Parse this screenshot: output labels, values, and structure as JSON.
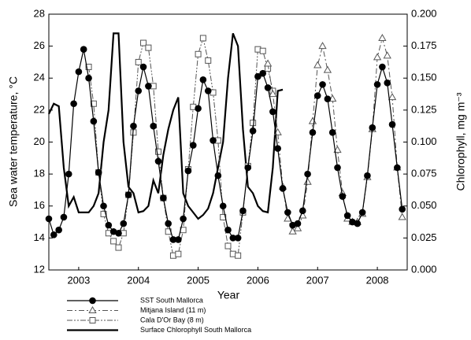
{
  "chart_data": {
    "type": "line",
    "x_label": "Year",
    "y_label": "Sea water temperature, °C",
    "y2_label": "Chlorophyll, mg m⁻³",
    "x": [
      2003,
      2003.083,
      2003.167,
      2003.25,
      2003.333,
      2003.417,
      2003.5,
      2003.583,
      2003.667,
      2003.75,
      2003.833,
      2003.917,
      2004,
      2004.083,
      2004.167,
      2004.25,
      2004.333,
      2004.417,
      2004.5,
      2004.583,
      2004.667,
      2004.75,
      2004.833,
      2004.917,
      2005,
      2005.083,
      2005.167,
      2005.25,
      2005.333,
      2005.417,
      2005.5,
      2005.583,
      2005.667,
      2005.75,
      2005.833,
      2005.917,
      2006,
      2006.083,
      2006.167,
      2006.25,
      2006.333,
      2006.417,
      2006.5,
      2006.583,
      2006.667,
      2006.75,
      2006.833,
      2006.917,
      2007,
      2007.083,
      2007.167,
      2007.25,
      2007.333,
      2007.417,
      2007.5,
      2007.583,
      2007.667,
      2007.75,
      2007.833,
      2007.917,
      2008,
      2008.083,
      2008.167,
      2008.25,
      2008.333,
      2008.417,
      2008.5,
      2008.583,
      2008.667,
      2008.75,
      2008.833,
      2008.917
    ],
    "xlim": [
      2003,
      2009
    ],
    "xticks": [
      {
        "value": 2003.5,
        "label": "2003"
      },
      {
        "value": 2004.5,
        "label": "2004"
      },
      {
        "value": 2005.5,
        "label": "2005"
      },
      {
        "value": 2006.5,
        "label": "2006"
      },
      {
        "value": 2007.5,
        "label": "2007"
      },
      {
        "value": 2008.5,
        "label": "2008"
      }
    ],
    "ylim": [
      12,
      28
    ],
    "yticks": [
      12,
      14,
      16,
      18,
      20,
      22,
      24,
      26,
      28
    ],
    "y2lim": [
      0,
      0.2
    ],
    "y2ticks": [
      {
        "value": 0,
        "label": "0.000"
      },
      {
        "value": 0.025,
        "label": "0.025"
      },
      {
        "value": 0.05,
        "label": "0.050"
      },
      {
        "value": 0.075,
        "label": "0.075"
      },
      {
        "value": 0.1,
        "label": "0.100"
      },
      {
        "value": 0.125,
        "label": "0.125"
      },
      {
        "value": 0.15,
        "label": "0.150"
      },
      {
        "value": 0.175,
        "label": "0.175"
      },
      {
        "value": 0.2,
        "label": "0.200"
      }
    ],
    "series": [
      {
        "name": "SST South Mallorca",
        "color": "#000000",
        "marker": "circle",
        "line_style": "solid",
        "values": [
          15.2,
          14.2,
          14.5,
          15.3,
          18.0,
          22.4,
          24.4,
          25.8,
          24.0,
          21.3,
          18.1,
          16.0,
          14.8,
          14.4,
          14.3,
          14.9,
          16.7,
          21.0,
          23.2,
          24.7,
          23.5,
          21.0,
          18.8,
          16.5,
          14.9,
          13.9,
          13.9,
          15.2,
          18.2,
          19.8,
          22.1,
          23.9,
          23.2,
          20.1,
          17.9,
          16.0,
          14.5,
          14.0,
          14.0,
          15.7,
          18.4,
          20.7,
          24.1,
          24.3,
          23.4,
          21.9,
          19.6,
          17.1,
          15.6,
          14.8,
          14.9,
          15.7,
          18.0,
          20.6,
          22.9,
          23.6,
          22.7,
          20.6,
          18.4,
          16.6,
          15.4,
          15.0,
          14.9,
          15.6,
          17.9,
          20.9,
          23.6,
          24.7,
          23.7,
          21.1,
          18.4,
          15.8
        ]
      },
      {
        "name": "Mitjana Island (11 m)",
        "color": "#555555",
        "marker": "triangle",
        "line_style": "dashdot",
        "values": [
          null,
          null,
          null,
          null,
          null,
          null,
          null,
          null,
          null,
          null,
          null,
          null,
          null,
          null,
          null,
          null,
          null,
          null,
          null,
          null,
          null,
          null,
          null,
          null,
          null,
          null,
          null,
          null,
          null,
          null,
          null,
          null,
          null,
          null,
          null,
          null,
          null,
          null,
          null,
          null,
          null,
          null,
          null,
          null,
          24.9,
          23.0,
          20.6,
          17.2,
          15.2,
          14.4,
          14.6,
          15.4,
          17.5,
          21.3,
          24.8,
          26.0,
          24.5,
          22.7,
          19.5,
          16.8,
          15.2,
          15.0,
          15.0,
          15.5,
          17.8,
          20.8,
          25.3,
          26.5,
          25.4,
          22.8,
          18.4,
          15.3
        ]
      },
      {
        "name": "Cala D'Or Bay (8 m)",
        "color": "#555555",
        "marker": "square",
        "line_style": "dashdotdot",
        "values": [
          null,
          null,
          null,
          null,
          null,
          null,
          null,
          null,
          24.7,
          22.4,
          18.1,
          15.5,
          14.3,
          13.8,
          13.4,
          14.3,
          16.7,
          20.6,
          25.0,
          26.2,
          25.9,
          23.5,
          19.4,
          16.5,
          14.4,
          12.9,
          13.0,
          14.5,
          18.3,
          22.2,
          25.5,
          26.5,
          25.1,
          23.1,
          20.1,
          15.3,
          13.5,
          13.0,
          12.9,
          15.6,
          18.5,
          21.2,
          25.8,
          25.7,
          24.6,
          23.2,
          null,
          null,
          null,
          null,
          null,
          null,
          null,
          null,
          null,
          null,
          null,
          null,
          null,
          null,
          null,
          null,
          null,
          null,
          null,
          null,
          null,
          null,
          null,
          null,
          null,
          null
        ]
      },
      {
        "name": "Surface Chlorophyll South Mallorca",
        "color": "#000000",
        "marker": "none",
        "line_style": "thick",
        "axis": "y2",
        "values": [
          0.122,
          0.13,
          0.128,
          0.08,
          0.05,
          0.057,
          0.045,
          0.045,
          0.045,
          0.05,
          0.06,
          0.1,
          0.125,
          0.185,
          0.185,
          0.1,
          0.065,
          0.06,
          0.045,
          0.046,
          0.05,
          0.07,
          0.06,
          0.09,
          0.11,
          0.125,
          0.135,
          0.06,
          0.05,
          0.045,
          0.04,
          0.043,
          0.048,
          0.06,
          0.08,
          0.1,
          0.15,
          0.185,
          0.175,
          0.11,
          0.065,
          0.06,
          0.05,
          0.046,
          0.045,
          0.08,
          0.14,
          0.141,
          null,
          null,
          null,
          null,
          null,
          null,
          null,
          null,
          null,
          null,
          null,
          null,
          null,
          null,
          null,
          null,
          null,
          null,
          null,
          null,
          null,
          null,
          null,
          null
        ]
      }
    ]
  }
}
